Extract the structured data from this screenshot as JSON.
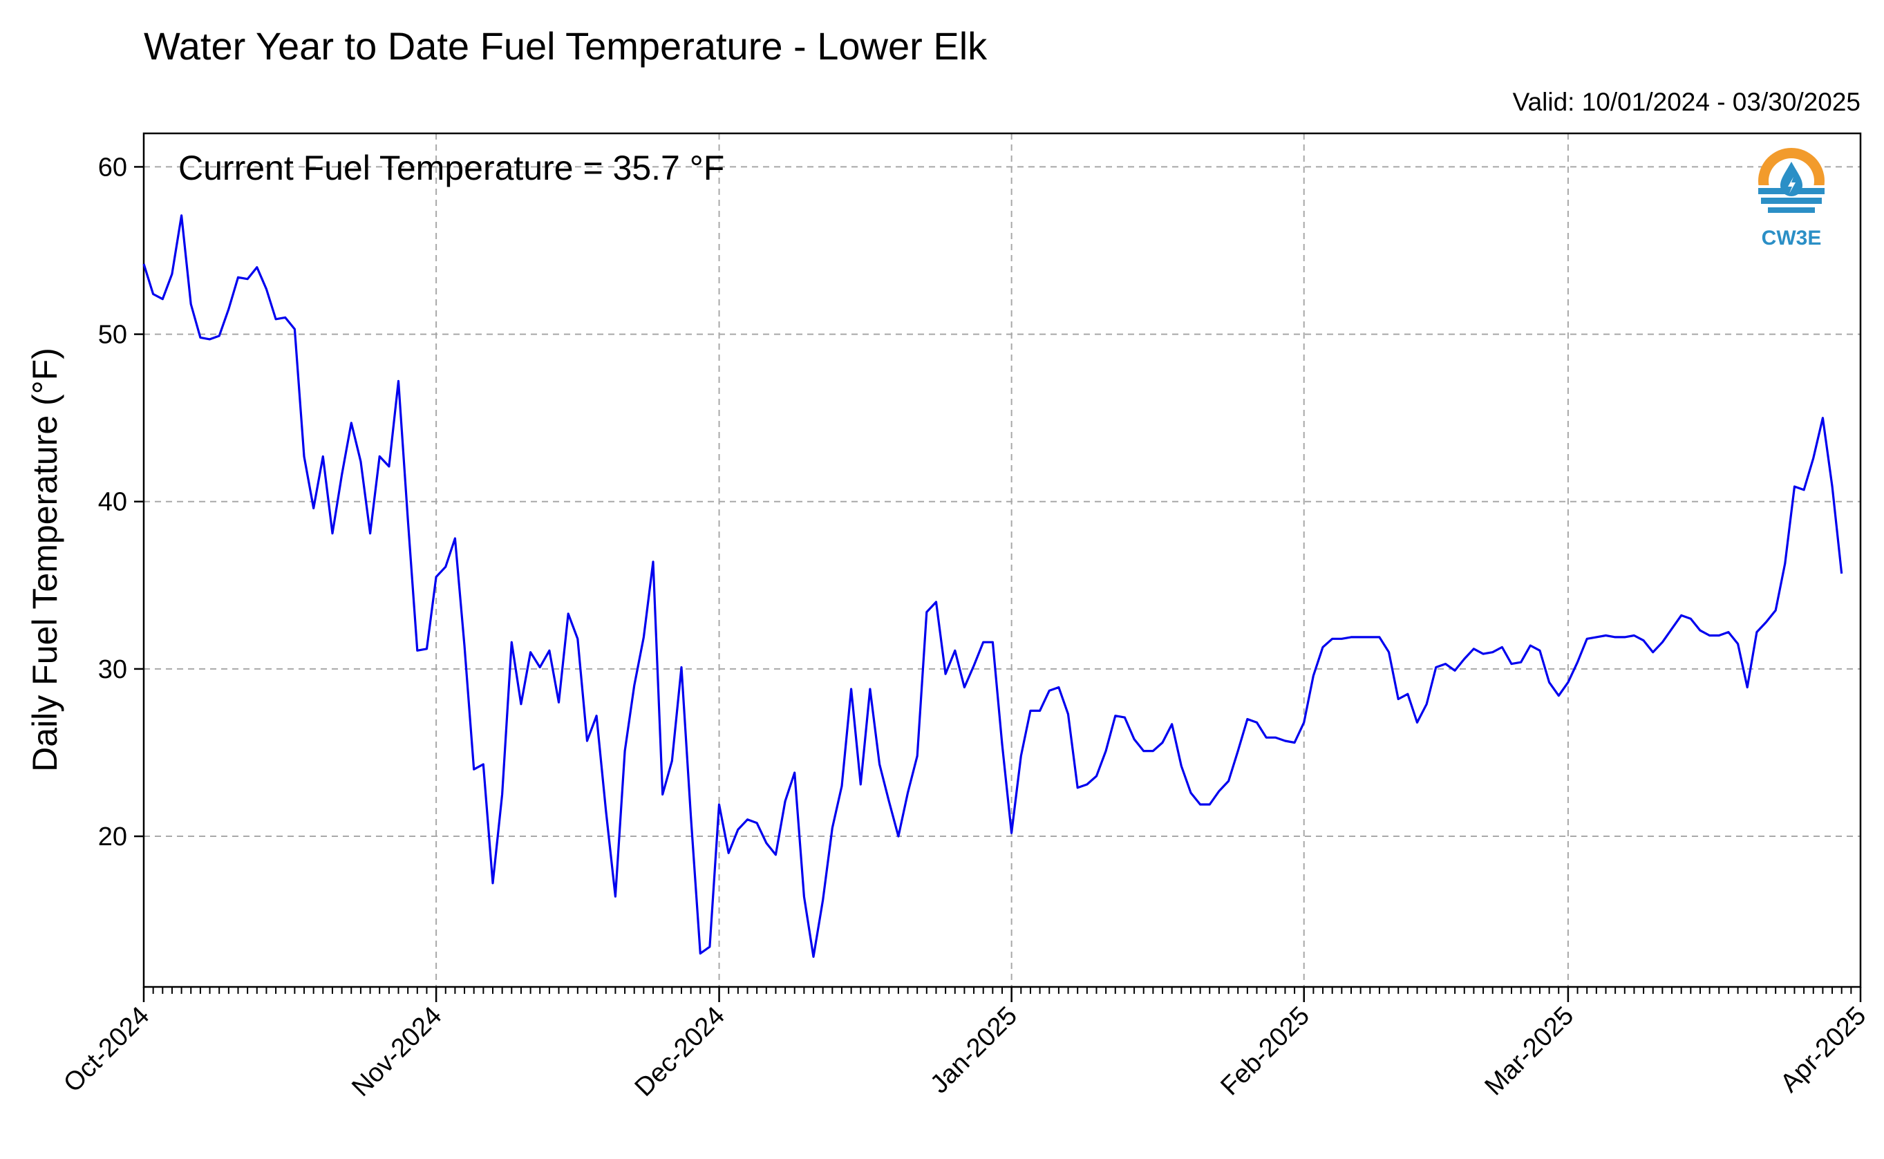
{
  "title": "Water Year to Date Fuel Temperature - Lower Elk",
  "valid_label": "Valid: 10/01/2024 - 03/30/2025",
  "annotation": "Current Fuel Temperature = 35.7 °F",
  "logo": {
    "text": "CW3E",
    "icon": "cw3e-logo-icon",
    "colors": {
      "ring": "#f29b2c",
      "water": "#2b8fc6"
    }
  },
  "chart_data": {
    "type": "line",
    "title": "Water Year to Date Fuel Temperature - Lower Elk",
    "xlabel": "",
    "ylabel": "Daily Fuel Temperature (°F)",
    "ylim": [
      11,
      62
    ],
    "yticks": [
      20,
      30,
      40,
      50,
      60
    ],
    "xlim": [
      "2024-10-01",
      "2025-04-01"
    ],
    "xticks": [
      {
        "date": "2024-10-01",
        "label": "Oct-2024"
      },
      {
        "date": "2024-11-01",
        "label": "Nov-2024"
      },
      {
        "date": "2024-12-01",
        "label": "Dec-2024"
      },
      {
        "date": "2025-01-01",
        "label": "Jan-2025"
      },
      {
        "date": "2025-02-01",
        "label": "Feb-2025"
      },
      {
        "date": "2025-03-01",
        "label": "Mar-2025"
      },
      {
        "date": "2025-04-01",
        "label": "Apr-2025"
      }
    ],
    "grid": true,
    "series_color": "#0000ee",
    "series": [
      {
        "name": "",
        "start_date": "2024-10-01",
        "values": [
          54.2,
          52.4,
          52.1,
          53.6,
          57.1,
          51.8,
          49.8,
          49.7,
          49.9,
          51.5,
          53.4,
          53.3,
          54.0,
          52.7,
          50.9,
          51.0,
          50.3,
          42.7,
          39.6,
          42.7,
          38.1,
          41.6,
          44.7,
          42.4,
          38.1,
          42.7,
          42.1,
          47.2,
          38.9,
          31.1,
          31.2,
          35.5,
          36.1,
          37.8,
          31.4,
          24.0,
          24.3,
          17.2,
          22.5,
          31.6,
          27.9,
          31.0,
          30.1,
          31.1,
          28.0,
          33.3,
          31.8,
          25.7,
          27.2,
          21.5,
          16.4,
          25.1,
          29.0,
          31.9,
          36.4,
          22.5,
          24.5,
          30.1,
          21.2,
          13.0,
          13.4,
          21.9,
          19.0,
          20.4,
          21.0,
          20.8,
          19.6,
          18.9,
          22.1,
          23.8,
          16.4,
          12.8,
          16.2,
          20.5,
          23.0,
          28.8,
          23.1,
          28.8,
          24.3,
          22.1,
          20.0,
          22.6,
          24.8,
          33.4,
          34.0,
          29.7,
          31.1,
          28.9,
          30.2,
          31.6,
          31.6,
          25.5,
          20.2,
          24.8,
          27.5,
          27.5,
          28.7,
          28.9,
          27.3,
          22.9,
          23.1,
          23.6,
          25.1,
          27.2,
          27.1,
          25.8,
          25.1,
          25.1,
          25.6,
          26.7,
          24.2,
          22.6,
          21.9,
          21.9,
          22.7,
          23.3,
          25.1,
          27.0,
          26.8,
          25.9,
          25.9,
          25.7,
          25.6,
          26.8,
          29.6,
          31.3,
          31.8,
          31.8,
          31.9,
          31.9,
          31.9,
          31.9,
          31.0,
          28.2,
          28.5,
          26.8,
          27.9,
          30.1,
          30.3,
          29.9,
          30.6,
          31.2,
          30.9,
          31.0,
          31.3,
          30.3,
          30.4,
          31.4,
          31.1,
          29.2,
          28.4,
          29.2,
          30.4,
          31.8,
          31.9,
          32.0,
          31.9,
          31.9,
          32.0,
          31.7,
          31.0,
          31.6,
          32.4,
          33.2,
          33.0,
          32.3,
          32.0,
          32.0,
          32.2,
          31.5,
          28.9,
          32.2,
          32.8,
          33.5,
          36.3,
          40.9,
          40.7,
          42.6,
          45.0,
          40.9,
          35.7
        ]
      }
    ]
  }
}
